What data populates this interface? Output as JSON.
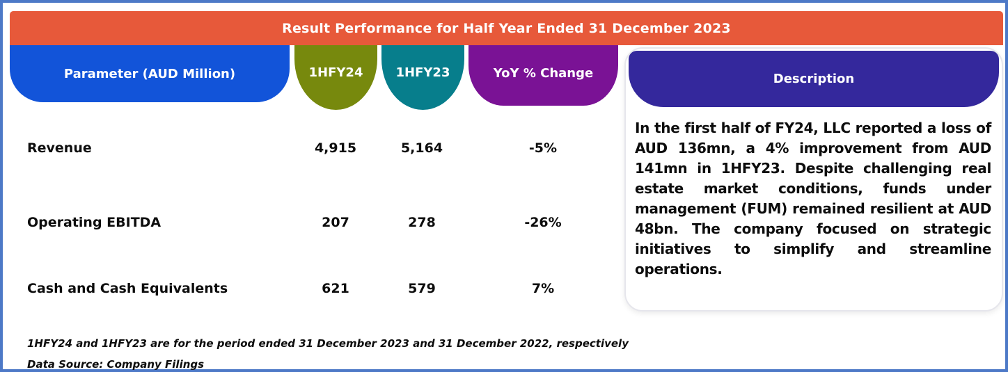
{
  "title": "Result Performance for Half Year Ended 31 December 2023",
  "columns": {
    "parameter": "Parameter (AUD Million)",
    "hfy24": "1HFY24",
    "hfy23": "1HFY23",
    "yoy": "YoY % Change",
    "description": "Description"
  },
  "rows": [
    {
      "parameter": "Revenue",
      "hfy24": "4,915",
      "hfy23": "5,164",
      "yoy": "-5%"
    },
    {
      "parameter": "Operating EBITDA",
      "hfy24": "207",
      "hfy23": "278",
      "yoy": "-26%"
    },
    {
      "parameter": "Cash and Cash Equivalents",
      "hfy24": "621",
      "hfy23": "579",
      "yoy": "7%"
    }
  ],
  "description_text": "In the first half of FY24, LLC reported a loss of AUD 136mn, a 4% improvement from AUD 141mn in 1HFY23. Despite challenging real estate market conditions, funds under management (FUM) remained resilient at AUD 48bn. The company focused on strategic initiatives to simplify and streamline operations.",
  "footnotes": {
    "period_note": "1HFY24 and 1HFY23 are for the period ended 31 December  2023 and 31 December 2022, respectively",
    "source_note": "Data Source: Company Filings"
  },
  "colors": {
    "title_bar": "#e7593a",
    "parameter_pill": "#1254d9",
    "hfy24_pill": "#77890d",
    "hfy23_pill": "#077e8c",
    "yoy_pill": "#7a1295",
    "description_pill": "#34289c",
    "outer_border": "#4d79c7",
    "text": "#0d0d0d"
  }
}
